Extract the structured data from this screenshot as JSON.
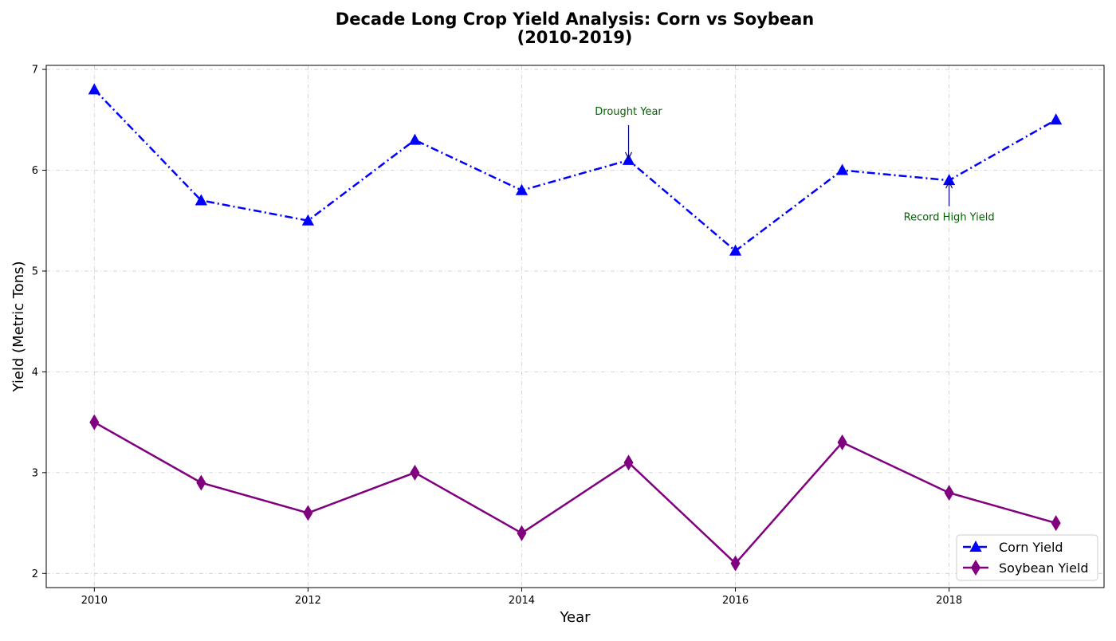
{
  "chart_data": {
    "type": "line",
    "title": "Decade Long Crop Yield Analysis: Corn vs Soybean",
    "title_line2": "(2010-2019)",
    "xlabel": "Year",
    "ylabel": "Yield (Metric Tons)",
    "x": [
      2010,
      2011,
      2012,
      2013,
      2014,
      2015,
      2016,
      2017,
      2018,
      2019
    ],
    "xlim": [
      2009.55,
      2019.45
    ],
    "ylim": [
      1.86,
      7.04
    ],
    "xticks": [
      2010,
      2012,
      2014,
      2016,
      2018
    ],
    "yticks": [
      2,
      3,
      4,
      5,
      6,
      7
    ],
    "grid": true,
    "legend_position": "lower right",
    "series": [
      {
        "name": "Corn Yield",
        "values": [
          6.8,
          5.7,
          5.5,
          6.3,
          5.8,
          6.1,
          5.2,
          6.0,
          5.9,
          6.5
        ],
        "color": "#0000ff",
        "marker": "triangle",
        "linestyle": "dash-dot"
      },
      {
        "name": "Soybean Yield",
        "values": [
          3.5,
          2.9,
          2.6,
          3.0,
          2.4,
          3.1,
          2.1,
          3.3,
          2.8,
          2.5
        ],
        "color": "#800080",
        "marker": "thin-diamond",
        "linestyle": "solid"
      }
    ],
    "annotations": [
      {
        "text": "Drought Year",
        "x": 2015,
        "y": 6.1,
        "text_y": 6.55,
        "color": "#006400",
        "arrow_color": "#00008b"
      },
      {
        "text": "Record High Yield",
        "x": 2018,
        "y": 5.9,
        "text_y": 5.5,
        "color": "#006400",
        "arrow_color": "#00008b"
      }
    ]
  }
}
